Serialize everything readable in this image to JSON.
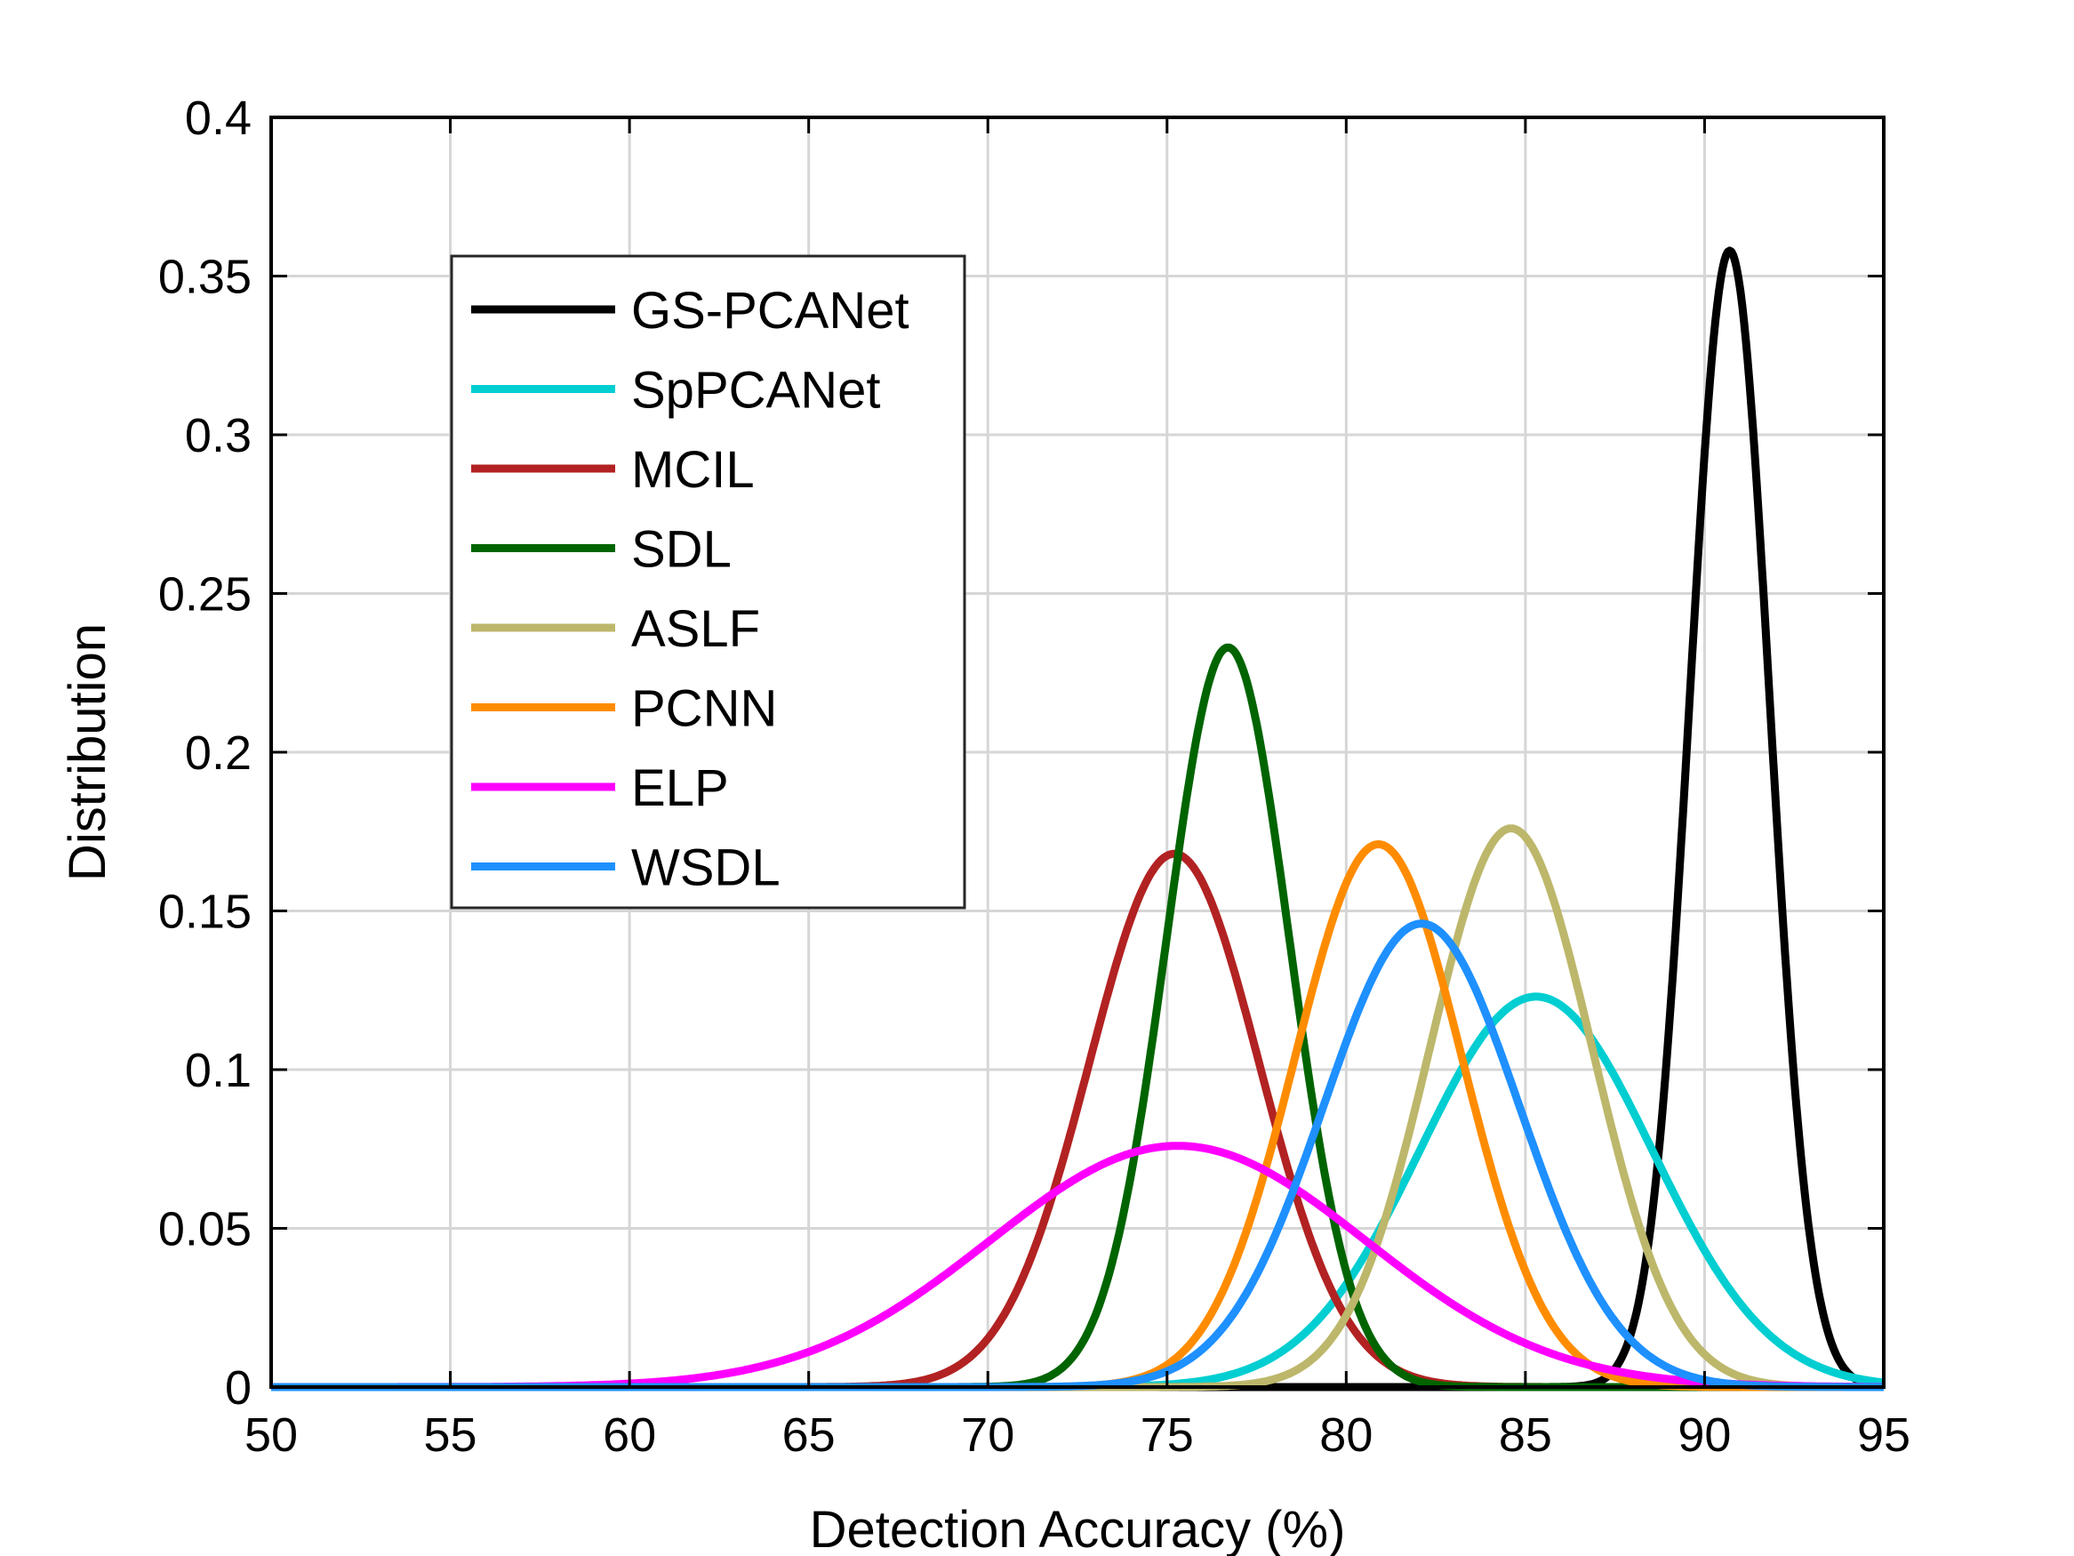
{
  "chart_data": {
    "type": "line",
    "title": "",
    "xlabel": "Detection Accuracy (%)",
    "ylabel": "Distribution",
    "xlim": [
      50,
      95
    ],
    "ylim": [
      0,
      0.4
    ],
    "xticks": [
      50,
      55,
      60,
      65,
      70,
      75,
      80,
      85,
      90,
      95
    ],
    "yticks": [
      0,
      0.05,
      0.1,
      0.15,
      0.2,
      0.25,
      0.3,
      0.35,
      0.4
    ],
    "ytick_labels": [
      "0",
      "0.05",
      "0.1",
      "0.15",
      "0.2",
      "0.25",
      "0.3",
      "0.35",
      "0.4"
    ],
    "grid": true,
    "legend_position": "top-left",
    "series": [
      {
        "name": "GS-PCANet",
        "color": "#000000",
        "mean": 90.7,
        "peak": 0.358
      },
      {
        "name": "SpPCANet",
        "color": "#00CED1",
        "mean": 85.3,
        "peak": 0.123
      },
      {
        "name": "MCIL",
        "color": "#B22222",
        "mean": 75.2,
        "peak": 0.168
      },
      {
        "name": "SDL",
        "color": "#006400",
        "mean": 76.7,
        "peak": 0.233
      },
      {
        "name": "ASLF",
        "color": "#BDB76B",
        "mean": 84.6,
        "peak": 0.176
      },
      {
        "name": "PCNN",
        "color": "#FF8C00",
        "mean": 80.9,
        "peak": 0.171
      },
      {
        "name": "ELP",
        "color": "#FF00FF",
        "mean": 75.3,
        "peak": 0.076
      },
      {
        "name": "WSDL",
        "color": "#1E90FF",
        "mean": 82.1,
        "peak": 0.146
      }
    ]
  }
}
